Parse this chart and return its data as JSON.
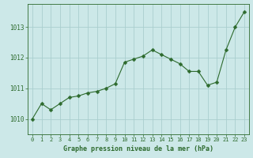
{
  "x": [
    0,
    1,
    2,
    3,
    4,
    5,
    6,
    7,
    8,
    9,
    10,
    11,
    12,
    13,
    14,
    15,
    16,
    17,
    18,
    19,
    20,
    21,
    22,
    23
  ],
  "y": [
    1010.0,
    1010.5,
    1010.3,
    1010.5,
    1010.7,
    1010.75,
    1010.85,
    1010.9,
    1011.0,
    1011.15,
    1011.85,
    1011.95,
    1012.05,
    1012.25,
    1012.1,
    1011.95,
    1011.8,
    1011.55,
    1011.55,
    1011.1,
    1011.2,
    1012.25,
    1013.0,
    1013.5
  ],
  "line_color": "#2d6a2d",
  "marker": "D",
  "marker_size": 2.5,
  "bg_color": "#cce8e8",
  "grid_color": "#aacece",
  "xlabel": "Graphe pression niveau de la mer (hPa)",
  "xlabel_color": "#2d6a2d",
  "tick_color": "#2d6a2d",
  "ylim": [
    1009.5,
    1013.75
  ],
  "xlim": [
    -0.5,
    23.5
  ],
  "yticks": [
    1010,
    1011,
    1012,
    1013
  ],
  "xticks": [
    0,
    1,
    2,
    3,
    4,
    5,
    6,
    7,
    8,
    9,
    10,
    11,
    12,
    13,
    14,
    15,
    16,
    17,
    18,
    19,
    20,
    21,
    22,
    23
  ]
}
